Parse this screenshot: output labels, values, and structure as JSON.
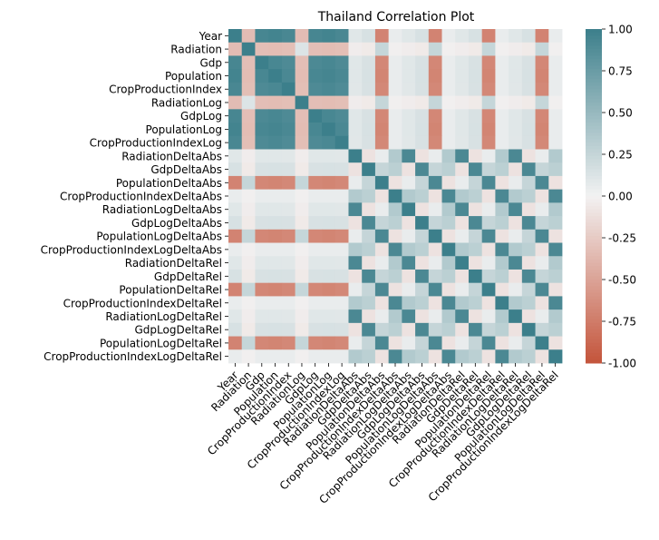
{
  "chart_data": {
    "type": "heatmap",
    "title": "Thailand Correlation Plot",
    "variables": [
      "Year",
      "Radiation",
      "Gdp",
      "Population",
      "CropProductionIndex",
      "RadiationLog",
      "GdpLog",
      "PopulationLog",
      "CropProductionIndexLog",
      "RadiationDeltaAbs",
      "GdpDeltaAbs",
      "PopulationDeltaAbs",
      "CropProductionIndexDeltaAbs",
      "RadiationLogDeltaAbs",
      "GdpLogDeltaAbs",
      "PopulationLogDeltaAbs",
      "CropProductionIndexLogDeltaAbs",
      "RadiationDeltaRel",
      "GdpDeltaRel",
      "PopulationDeltaRel",
      "CropProductionIndexDeltaRel",
      "RadiationLogDeltaRel",
      "GdpLogDeltaRel",
      "PopulationLogDeltaRel",
      "CropProductionIndexLogDeltaRel"
    ],
    "colorbar": {
      "vmin": -1.0,
      "vmax": 1.0,
      "ticks": [
        "1.00",
        "0.75",
        "0.50",
        "0.25",
        "0.00",
        "-0.25",
        "-0.50",
        "-0.75",
        "-1.00"
      ],
      "low_color": "#c4543b",
      "mid_color": "#f2f2f2",
      "high_color": "#3c7f8b"
    },
    "grid": false,
    "legend": "right"
  }
}
